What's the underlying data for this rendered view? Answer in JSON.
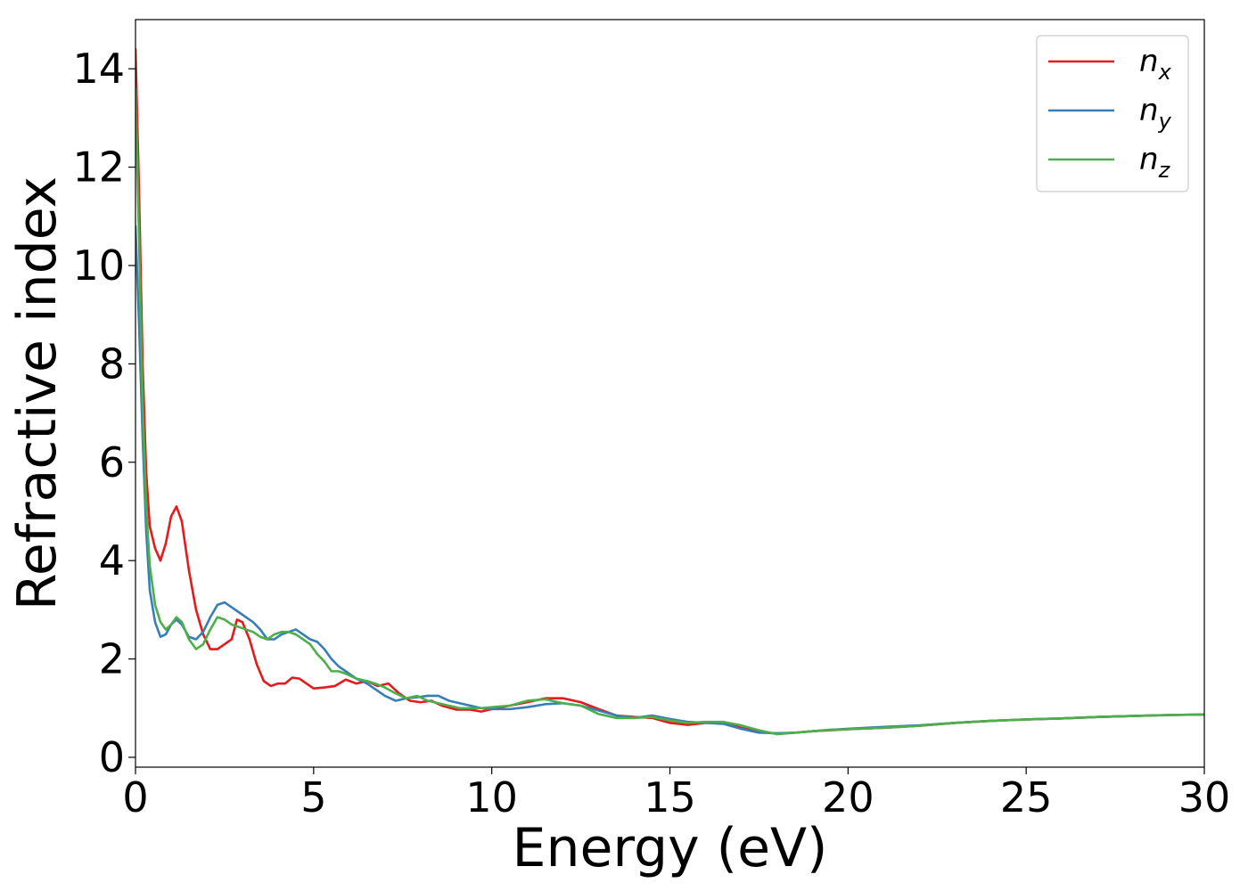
{
  "chart_data": {
    "type": "line",
    "title": "",
    "xlabel": "Energy (eV)",
    "ylabel": "Refractive index",
    "xlim": [
      0,
      30
    ],
    "ylim": [
      -0.2,
      15
    ],
    "xticks": [
      0,
      5,
      10,
      15,
      20,
      25,
      30
    ],
    "yticks": [
      0,
      2,
      4,
      6,
      8,
      10,
      12,
      14
    ],
    "grid": false,
    "legend_position": "top-right",
    "series": [
      {
        "name": "n_x",
        "legend_base": "n",
        "legend_sub": "x",
        "color": "#e41a1c",
        "points": [
          [
            0.0,
            14.4
          ],
          [
            0.1,
            11.5
          ],
          [
            0.2,
            8.0
          ],
          [
            0.3,
            5.8
          ],
          [
            0.4,
            4.7
          ],
          [
            0.55,
            4.25
          ],
          [
            0.7,
            4.0
          ],
          [
            0.85,
            4.35
          ],
          [
            1.0,
            4.9
          ],
          [
            1.15,
            5.1
          ],
          [
            1.3,
            4.8
          ],
          [
            1.5,
            3.8
          ],
          [
            1.7,
            3.0
          ],
          [
            1.9,
            2.5
          ],
          [
            2.1,
            2.2
          ],
          [
            2.3,
            2.2
          ],
          [
            2.5,
            2.3
          ],
          [
            2.7,
            2.4
          ],
          [
            2.85,
            2.8
          ],
          [
            3.0,
            2.75
          ],
          [
            3.2,
            2.4
          ],
          [
            3.4,
            1.9
          ],
          [
            3.6,
            1.55
          ],
          [
            3.8,
            1.45
          ],
          [
            4.0,
            1.5
          ],
          [
            4.2,
            1.5
          ],
          [
            4.4,
            1.62
          ],
          [
            4.6,
            1.6
          ],
          [
            4.8,
            1.5
          ],
          [
            5.0,
            1.4
          ],
          [
            5.3,
            1.42
          ],
          [
            5.6,
            1.45
          ],
          [
            5.9,
            1.58
          ],
          [
            6.2,
            1.5
          ],
          [
            6.5,
            1.55
          ],
          [
            6.8,
            1.45
          ],
          [
            7.1,
            1.5
          ],
          [
            7.4,
            1.3
          ],
          [
            7.7,
            1.15
          ],
          [
            8.0,
            1.12
          ],
          [
            8.3,
            1.15
          ],
          [
            8.6,
            1.05
          ],
          [
            9.0,
            0.97
          ],
          [
            9.4,
            0.97
          ],
          [
            9.7,
            0.93
          ],
          [
            10.0,
            0.98
          ],
          [
            10.5,
            1.05
          ],
          [
            11.0,
            1.12
          ],
          [
            11.5,
            1.2
          ],
          [
            12.0,
            1.2
          ],
          [
            12.5,
            1.12
          ],
          [
            13.0,
            0.98
          ],
          [
            13.5,
            0.85
          ],
          [
            14.0,
            0.82
          ],
          [
            14.5,
            0.8
          ],
          [
            15.0,
            0.7
          ],
          [
            15.5,
            0.66
          ],
          [
            16.0,
            0.7
          ],
          [
            16.5,
            0.7
          ],
          [
            17.0,
            0.6
          ],
          [
            17.5,
            0.52
          ],
          [
            18.0,
            0.48
          ],
          [
            18.5,
            0.5
          ],
          [
            19.0,
            0.53
          ],
          [
            19.5,
            0.55
          ],
          [
            20.0,
            0.57
          ],
          [
            21.0,
            0.6
          ],
          [
            22.0,
            0.64
          ],
          [
            23.0,
            0.7
          ],
          [
            24.0,
            0.74
          ],
          [
            25.0,
            0.77
          ],
          [
            26.0,
            0.79
          ],
          [
            27.0,
            0.82
          ],
          [
            28.0,
            0.84
          ],
          [
            29.0,
            0.86
          ],
          [
            30.0,
            0.87
          ]
        ]
      },
      {
        "name": "n_y",
        "legend_base": "n",
        "legend_sub": "y",
        "color": "#377eb8",
        "points": [
          [
            0.0,
            10.8
          ],
          [
            0.1,
            8.8
          ],
          [
            0.2,
            6.5
          ],
          [
            0.3,
            4.6
          ],
          [
            0.4,
            3.4
          ],
          [
            0.55,
            2.75
          ],
          [
            0.7,
            2.45
          ],
          [
            0.85,
            2.5
          ],
          [
            1.0,
            2.7
          ],
          [
            1.15,
            2.8
          ],
          [
            1.3,
            2.7
          ],
          [
            1.5,
            2.45
          ],
          [
            1.7,
            2.4
          ],
          [
            1.9,
            2.55
          ],
          [
            2.1,
            2.85
          ],
          [
            2.3,
            3.1
          ],
          [
            2.5,
            3.15
          ],
          [
            2.7,
            3.05
          ],
          [
            2.9,
            2.95
          ],
          [
            3.1,
            2.85
          ],
          [
            3.3,
            2.75
          ],
          [
            3.5,
            2.6
          ],
          [
            3.7,
            2.4
          ],
          [
            3.9,
            2.4
          ],
          [
            4.1,
            2.5
          ],
          [
            4.3,
            2.55
          ],
          [
            4.5,
            2.6
          ],
          [
            4.7,
            2.5
          ],
          [
            4.9,
            2.4
          ],
          [
            5.1,
            2.35
          ],
          [
            5.3,
            2.2
          ],
          [
            5.5,
            2.0
          ],
          [
            5.7,
            1.85
          ],
          [
            5.9,
            1.75
          ],
          [
            6.2,
            1.6
          ],
          [
            6.5,
            1.5
          ],
          [
            6.8,
            1.35
          ],
          [
            7.0,
            1.25
          ],
          [
            7.3,
            1.15
          ],
          [
            7.6,
            1.2
          ],
          [
            7.9,
            1.22
          ],
          [
            8.2,
            1.25
          ],
          [
            8.5,
            1.25
          ],
          [
            8.8,
            1.15
          ],
          [
            9.1,
            1.1
          ],
          [
            9.4,
            1.05
          ],
          [
            9.7,
            1.0
          ],
          [
            10.0,
            0.98
          ],
          [
            10.5,
            0.98
          ],
          [
            11.0,
            1.02
          ],
          [
            11.5,
            1.08
          ],
          [
            12.0,
            1.1
          ],
          [
            12.5,
            1.05
          ],
          [
            13.0,
            0.95
          ],
          [
            13.5,
            0.85
          ],
          [
            14.0,
            0.8
          ],
          [
            14.5,
            0.85
          ],
          [
            15.0,
            0.78
          ],
          [
            15.5,
            0.72
          ],
          [
            16.0,
            0.7
          ],
          [
            16.5,
            0.68
          ],
          [
            17.0,
            0.58
          ],
          [
            17.5,
            0.5
          ],
          [
            18.0,
            0.49
          ],
          [
            18.5,
            0.5
          ],
          [
            19.0,
            0.53
          ],
          [
            19.5,
            0.56
          ],
          [
            20.0,
            0.58
          ],
          [
            21.0,
            0.62
          ],
          [
            22.0,
            0.65
          ],
          [
            23.0,
            0.7
          ],
          [
            24.0,
            0.74
          ],
          [
            25.0,
            0.77
          ],
          [
            26.0,
            0.79
          ],
          [
            27.0,
            0.82
          ],
          [
            28.0,
            0.84
          ],
          [
            29.0,
            0.86
          ],
          [
            30.0,
            0.87
          ]
        ]
      },
      {
        "name": "n_z",
        "legend_base": "n",
        "legend_sub": "z",
        "color": "#4daf4a",
        "points": [
          [
            0.0,
            13.6
          ],
          [
            0.1,
            10.5
          ],
          [
            0.2,
            7.2
          ],
          [
            0.3,
            5.1
          ],
          [
            0.4,
            3.9
          ],
          [
            0.55,
            3.1
          ],
          [
            0.7,
            2.75
          ],
          [
            0.85,
            2.6
          ],
          [
            1.0,
            2.7
          ],
          [
            1.15,
            2.85
          ],
          [
            1.3,
            2.75
          ],
          [
            1.5,
            2.4
          ],
          [
            1.7,
            2.2
          ],
          [
            1.9,
            2.3
          ],
          [
            2.1,
            2.6
          ],
          [
            2.3,
            2.85
          ],
          [
            2.5,
            2.8
          ],
          [
            2.7,
            2.7
          ],
          [
            2.9,
            2.65
          ],
          [
            3.1,
            2.6
          ],
          [
            3.3,
            2.55
          ],
          [
            3.5,
            2.45
          ],
          [
            3.7,
            2.4
          ],
          [
            3.9,
            2.5
          ],
          [
            4.1,
            2.55
          ],
          [
            4.3,
            2.55
          ],
          [
            4.5,
            2.5
          ],
          [
            4.7,
            2.4
          ],
          [
            4.9,
            2.3
          ],
          [
            5.1,
            2.1
          ],
          [
            5.3,
            1.95
          ],
          [
            5.5,
            1.75
          ],
          [
            5.7,
            1.75
          ],
          [
            5.9,
            1.7
          ],
          [
            6.2,
            1.6
          ],
          [
            6.5,
            1.55
          ],
          [
            6.8,
            1.48
          ],
          [
            7.0,
            1.42
          ],
          [
            7.3,
            1.3
          ],
          [
            7.6,
            1.2
          ],
          [
            7.9,
            1.25
          ],
          [
            8.2,
            1.15
          ],
          [
            8.5,
            1.1
          ],
          [
            8.8,
            1.05
          ],
          [
            9.1,
            1.0
          ],
          [
            9.4,
            1.0
          ],
          [
            9.7,
            1.0
          ],
          [
            10.0,
            1.02
          ],
          [
            10.5,
            1.05
          ],
          [
            11.0,
            1.15
          ],
          [
            11.5,
            1.18
          ],
          [
            12.0,
            1.1
          ],
          [
            12.5,
            1.05
          ],
          [
            13.0,
            0.88
          ],
          [
            13.5,
            0.8
          ],
          [
            14.0,
            0.8
          ],
          [
            14.5,
            0.82
          ],
          [
            15.0,
            0.75
          ],
          [
            15.5,
            0.7
          ],
          [
            16.0,
            0.72
          ],
          [
            16.5,
            0.72
          ],
          [
            17.0,
            0.65
          ],
          [
            17.5,
            0.55
          ],
          [
            18.0,
            0.47
          ],
          [
            18.5,
            0.5
          ],
          [
            19.0,
            0.53
          ],
          [
            19.5,
            0.56
          ],
          [
            20.0,
            0.57
          ],
          [
            21.0,
            0.6
          ],
          [
            22.0,
            0.64
          ],
          [
            23.0,
            0.7
          ],
          [
            24.0,
            0.74
          ],
          [
            25.0,
            0.77
          ],
          [
            26.0,
            0.79
          ],
          [
            27.0,
            0.82
          ],
          [
            28.0,
            0.84
          ],
          [
            29.0,
            0.86
          ],
          [
            30.0,
            0.87
          ]
        ]
      }
    ]
  }
}
